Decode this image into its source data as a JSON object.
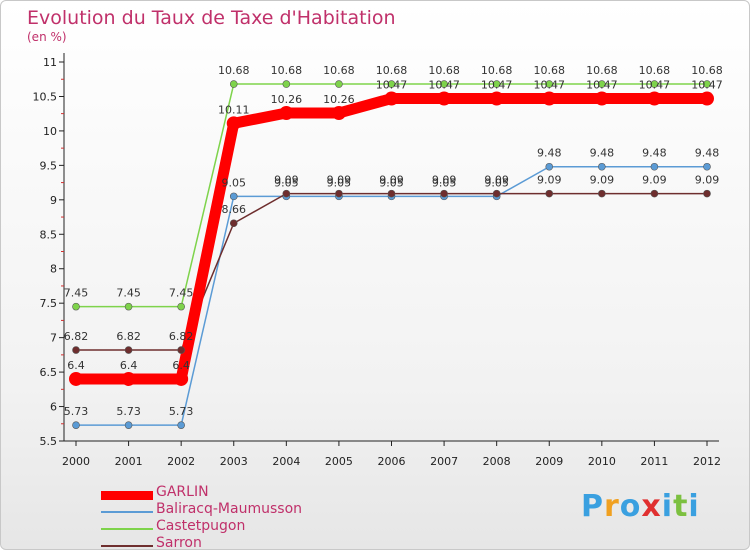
{
  "chart_data": {
    "type": "line",
    "title": "Evolution du Taux de Taxe d'Habitation",
    "ylabel": "(en %)",
    "xlabel": "",
    "ylim": [
      5.5,
      11
    ],
    "y_ticks": [
      "5.5",
      "6",
      "6.5",
      "7",
      "7.5",
      "8",
      "8.5",
      "9",
      "9.5",
      "10",
      "10.5",
      "11"
    ],
    "categories": [
      "2000",
      "2001",
      "2002",
      "2003",
      "2004",
      "2005",
      "2006",
      "2007",
      "2008",
      "2009",
      "2010",
      "2011",
      "2012"
    ],
    "series": [
      {
        "name": "GARLIN",
        "color": "#ff0000",
        "values": [
          6.4,
          6.4,
          6.4,
          10.11,
          10.26,
          10.26,
          10.47,
          10.47,
          10.47,
          10.47,
          10.47,
          10.47,
          10.47
        ],
        "labels": [
          "6.4",
          "6.4",
          "6.4",
          "10.11",
          "10.26",
          "10.26",
          "10.47",
          "10.47",
          "10.47",
          "10.47",
          "10.47",
          "10.47",
          "10.47"
        ]
      },
      {
        "name": "Baliracq-Maumusson",
        "color": "#5b9bd5",
        "values": [
          5.73,
          5.73,
          5.73,
          9.05,
          9.05,
          9.05,
          9.05,
          9.05,
          9.05,
          9.48,
          9.48,
          9.48,
          9.48
        ],
        "labels": [
          "5.73",
          "5.73",
          "5.73",
          "9.05",
          "9.05",
          "9.05",
          "9.05",
          "9.05",
          "9.05",
          "9.48",
          "9.48",
          "9.48",
          "9.48"
        ]
      },
      {
        "name": "Castetpugon",
        "color": "#7ed34b",
        "values": [
          7.45,
          7.45,
          7.45,
          10.68,
          10.68,
          10.68,
          10.68,
          10.68,
          10.68,
          10.68,
          10.68,
          10.68,
          10.68
        ],
        "labels": [
          "7.45",
          "7.45",
          "7.45",
          "10.68",
          "10.68",
          "10.68",
          "10.68",
          "10.68",
          "10.68",
          "10.68",
          "10.68",
          "10.68",
          "10.68"
        ]
      },
      {
        "name": "Sarron",
        "color": "#6e2e2e",
        "values": [
          6.82,
          6.82,
          6.82,
          8.66,
          9.09,
          9.09,
          9.09,
          9.09,
          9.09,
          9.09,
          9.09,
          9.09,
          9.09
        ],
        "labels": [
          "6.82",
          "6.82",
          "6.82",
          "8.66",
          "9.09",
          "9.09",
          "9.09",
          "9.09",
          "9.09",
          "9.09",
          "9.09",
          "9.09",
          "9.09"
        ]
      }
    ],
    "legend_position": "bottom-left",
    "grid": false
  },
  "logo": {
    "letters": [
      "P",
      "r",
      "o",
      "x",
      "i",
      "t",
      "i"
    ],
    "colors": [
      "#3aa0e0",
      "#f0a020",
      "#3aa0e0",
      "#e03030",
      "#3aa0e0",
      "#7cc040",
      "#3aa0e0"
    ]
  }
}
